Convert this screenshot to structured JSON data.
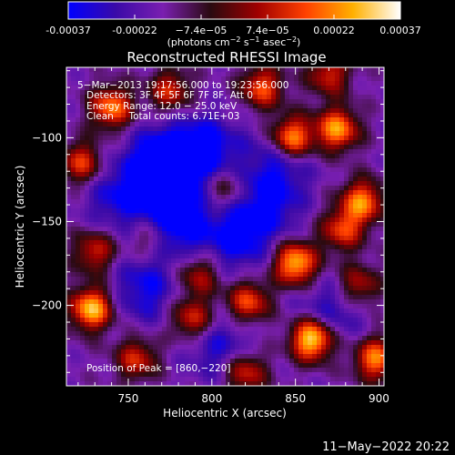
{
  "colorbar": {
    "min": -0.00037,
    "max": 0.00037,
    "tick_labels": [
      "-0.00037",
      "-0.00022",
      "−7.4e−05",
      "7.4e−05",
      "0.00022",
      "0.00037"
    ],
    "unit_main": "(photons cm",
    "unit_sup1": "−2",
    "unit_mid1": " s",
    "unit_sup2": "−1",
    "unit_mid2": " asec",
    "unit_sup3": "−2",
    "unit_end": ")",
    "colormap": [
      "#0000ff",
      "#3a0aa8",
      "#7a1fb0",
      "#2a0a10",
      "#a00000",
      "#ff4000",
      "#ffb000",
      "#ffffff"
    ]
  },
  "chart_data": {
    "type": "heatmap",
    "title": "Reconstructed RHESSI Image",
    "xlabel": "Heliocentric X (arcsec)",
    "ylabel": "Heliocentric Y (arcsec)",
    "xlim": [
      713,
      903
    ],
    "ylim": [
      -248,
      -58
    ],
    "x_ticks": [
      750,
      800,
      850,
      900
    ],
    "y_ticks": [
      -100,
      -150,
      -200
    ],
    "x_tick_labels": [
      "750",
      "800",
      "850",
      "900"
    ],
    "y_tick_labels": [
      "−100",
      "−150",
      "−200"
    ],
    "annotations": [
      "5−Mar−2013 19:17:56.000 to 19:23:56.000",
      "Detectors: 3F 4F 5F 6F 7F 8F, Att 0",
      "Energy Range: 12.0 − 25.0 keV",
      "Clean     Total counts: 6.71E+03"
    ],
    "peak_label": "Position of Peak = [860,−220]",
    "peak": [
      860,
      -220
    ],
    "hotspots": [
      {
        "x": 740,
        "y": -82,
        "v": 0.7
      },
      {
        "x": 775,
        "y": -72,
        "v": 0.5
      },
      {
        "x": 830,
        "y": -70,
        "v": 0.6
      },
      {
        "x": 870,
        "y": -62,
        "v": 0.5
      },
      {
        "x": 848,
        "y": -100,
        "v": 0.8
      },
      {
        "x": 875,
        "y": -95,
        "v": 0.75
      },
      {
        "x": 890,
        "y": -138,
        "v": 0.7
      },
      {
        "x": 878,
        "y": -155,
        "v": 0.55
      },
      {
        "x": 722,
        "y": -115,
        "v": 0.55
      },
      {
        "x": 730,
        "y": -168,
        "v": 0.5
      },
      {
        "x": 728,
        "y": -202,
        "v": 0.85
      },
      {
        "x": 860,
        "y": -220,
        "v": 1.0
      },
      {
        "x": 850,
        "y": -175,
        "v": 0.85
      },
      {
        "x": 822,
        "y": -198,
        "v": 0.6
      },
      {
        "x": 788,
        "y": -208,
        "v": 0.55
      },
      {
        "x": 755,
        "y": -232,
        "v": 0.5
      },
      {
        "x": 792,
        "y": -182,
        "v": 0.45
      },
      {
        "x": 898,
        "y": -232,
        "v": 0.7
      },
      {
        "x": 888,
        "y": -188,
        "v": 0.45
      },
      {
        "x": 808,
        "y": -130,
        "v": 0.35
      },
      {
        "x": 820,
        "y": -240,
        "v": 0.55
      },
      {
        "x": 763,
        "y": -160,
        "v": 0.35
      }
    ],
    "coldspots": [
      {
        "x": 770,
        "y": -115,
        "v": -0.6
      },
      {
        "x": 795,
        "y": -108,
        "v": -0.5
      },
      {
        "x": 778,
        "y": -150,
        "v": -0.55
      },
      {
        "x": 815,
        "y": -160,
        "v": -0.4
      },
      {
        "x": 745,
        "y": -135,
        "v": -0.35
      },
      {
        "x": 833,
        "y": -140,
        "v": -0.35
      },
      {
        "x": 760,
        "y": -190,
        "v": -0.35
      },
      {
        "x": 805,
        "y": -225,
        "v": -0.3
      },
      {
        "x": 870,
        "y": -205,
        "v": -0.3
      },
      {
        "x": 840,
        "y": -115,
        "v": -0.3
      }
    ]
  },
  "footer": {
    "date": "11−May−2022 20:22"
  }
}
